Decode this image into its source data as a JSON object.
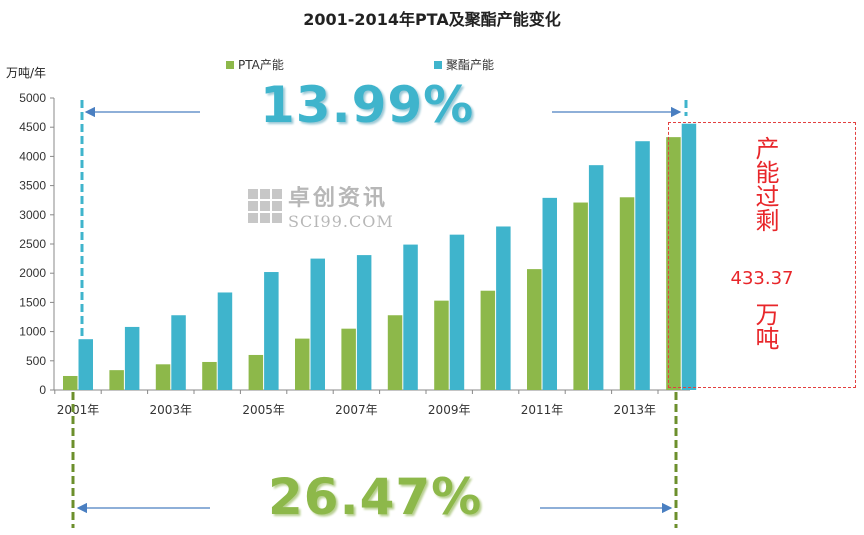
{
  "chart_data": {
    "type": "bar",
    "title": "2001-2014年PTA及聚酯产能变化",
    "ylabel": "万吨/年",
    "xlabel": "",
    "ylim": [
      0,
      5000
    ],
    "yticks": [
      0,
      500,
      1000,
      1500,
      2000,
      2500,
      3000,
      3500,
      4000,
      4500,
      5000
    ],
    "categories": [
      "2001",
      "2002",
      "2003",
      "2004",
      "2005",
      "2006",
      "2007",
      "2008",
      "2009",
      "2010",
      "2011",
      "2012",
      "2013",
      "2014"
    ],
    "xtick_labels": [
      "2001年",
      "",
      "2003年",
      "",
      "2005年",
      "",
      "2007年",
      "",
      "2009年",
      "",
      "2011年",
      "",
      "2013年",
      ""
    ],
    "series": [
      {
        "name": "PTA产能",
        "color": "#8db84a",
        "values": [
          240,
          340,
          440,
          480,
          600,
          880,
          1050,
          1280,
          1530,
          1700,
          2070,
          3210,
          3300,
          4330
        ]
      },
      {
        "name": "聚酯产能",
        "color": "#3fb4cc",
        "values": [
          870,
          1080,
          1280,
          1670,
          2020,
          2250,
          2310,
          2490,
          2660,
          2800,
          3290,
          3850,
          4260,
          4560
        ]
      }
    ],
    "grid": false,
    "legend_position": "top-center"
  },
  "annotations": {
    "top_growth": "13.99%",
    "bottom_growth": "26.47%",
    "overcapacity_label": "产能过剩",
    "overcapacity_value": "433.37",
    "overcapacity_unit": "万吨"
  },
  "watermark": {
    "cn": "卓创资讯",
    "en": "SCI99.COM"
  }
}
